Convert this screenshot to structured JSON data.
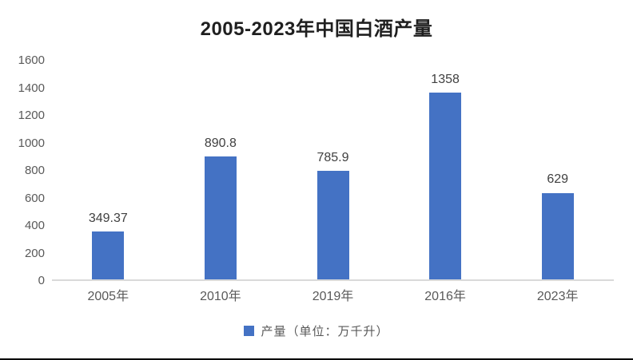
{
  "chart_data": {
    "type": "bar",
    "title": "2005-2023年中国白酒产量",
    "categories": [
      "2005年",
      "2010年",
      "2019年",
      "2016年",
      "2023年"
    ],
    "values": [
      349.37,
      890.8,
      785.9,
      1358,
      629
    ],
    "data_labels": [
      "349.37",
      "890.8",
      "785.9",
      "1358",
      "629"
    ],
    "series_name": "产量（单位：万千升）",
    "legend": {
      "label": "产量（单位：万千升）",
      "position": "bottom",
      "marker": "square-icon"
    },
    "xlabel": "",
    "ylabel": "",
    "ylim": [
      0,
      1600
    ],
    "yticks": [
      0,
      200,
      400,
      600,
      800,
      1000,
      1200,
      1400,
      1600
    ],
    "grid": false,
    "colors": {
      "bar": "#4472c4",
      "axis_tick_text": "#595959",
      "data_label_text": "#404040",
      "title_text": "#1f1f1f",
      "baseline": "#d9d9d9",
      "background": "#ffffff",
      "bottom_edge_line": "#000000"
    }
  }
}
